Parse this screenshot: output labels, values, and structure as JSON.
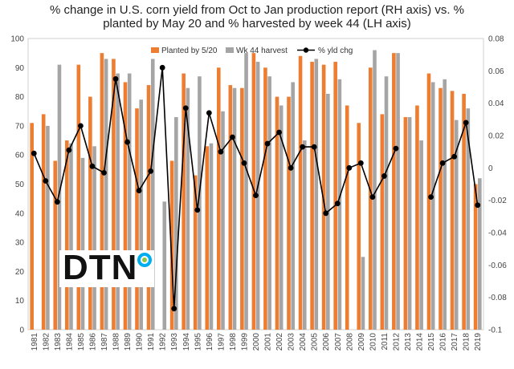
{
  "chart_data": {
    "type": "bar",
    "title_lines": [
      "%  change in U.S. corn yield from Oct to Jan production report (RH axis) vs. %",
      "planted by May 20 and %  harvested by week 44 (LH axis)"
    ],
    "categories": [
      "1981",
      "1982",
      "1983",
      "1984",
      "1985",
      "1986",
      "1987",
      "1988",
      "1989",
      "1990",
      "1991",
      "1992",
      "1993",
      "1994",
      "1995",
      "1996",
      "1997",
      "1998",
      "1999",
      "2000",
      "2001",
      "2002",
      "2003",
      "2004",
      "2005",
      "2006",
      "2007",
      "2008",
      "2009",
      "2010",
      "2011",
      "2012",
      "2013",
      "2014",
      "2015",
      "2016",
      "2017",
      "2018",
      "2019"
    ],
    "series": [
      {
        "name": "Planted by 5/20",
        "axis": "left",
        "color": "#ED7D31",
        "values": [
          71,
          74,
          58,
          65,
          91,
          80,
          95,
          93,
          85,
          76,
          84,
          null,
          58,
          88,
          53,
          63,
          90,
          84,
          83,
          95,
          90,
          80,
          80,
          94,
          92,
          91,
          92,
          77,
          71,
          90,
          74,
          95,
          73,
          77,
          88,
          83,
          82,
          81,
          50
        ]
      },
      {
        "name": "Wk 44 harvest",
        "axis": "left",
        "color": "#A5A5A5",
        "values": [
          null,
          70,
          91,
          64,
          59,
          63,
          93,
          88,
          88,
          79,
          93,
          44,
          73,
          83,
          87,
          64,
          75,
          83,
          95,
          92,
          87,
          77,
          85,
          65,
          93,
          81,
          86,
          null,
          25,
          96,
          87,
          95,
          73,
          65,
          85,
          86,
          72,
          76,
          52
        ]
      },
      {
        "name": "% yld chg",
        "axis": "right",
        "color": "#000000",
        "values": [
          0.009,
          -0.008,
          -0.021,
          0.011,
          0.026,
          0.001,
          -0.003,
          0.055,
          0.016,
          -0.014,
          -0.002,
          0.062,
          -0.087,
          0.037,
          -0.026,
          0.034,
          0.01,
          0.019,
          0.003,
          -0.017,
          0.015,
          0.022,
          0.0,
          0.013,
          0.013,
          -0.028,
          -0.022,
          0.0,
          0.003,
          -0.018,
          -0.005,
          0.012,
          null,
          null,
          -0.018,
          0.003,
          0.007,
          0.028,
          -0.023
        ]
      }
    ],
    "left_axis": {
      "min": 0,
      "max": 100,
      "step": 10,
      "ticks": [
        "0",
        "10",
        "20",
        "30",
        "40",
        "50",
        "60",
        "70",
        "80",
        "90",
        "100"
      ]
    },
    "right_axis": {
      "min": -0.1,
      "max": 0.08,
      "step": 0.02,
      "ticks": [
        "-0.1",
        "-0.08",
        "-0.06",
        "-0.04",
        "-0.02",
        "0",
        "0.02",
        "0.04",
        "0.06",
        "0.08"
      ]
    },
    "grid": false,
    "legend_position": "top"
  },
  "logo": {
    "text": "DTN",
    "colors": {
      "wordmark": "#111111",
      "ring_outer": "#00AEEF",
      "ring_inner": "#8DC63F"
    }
  }
}
